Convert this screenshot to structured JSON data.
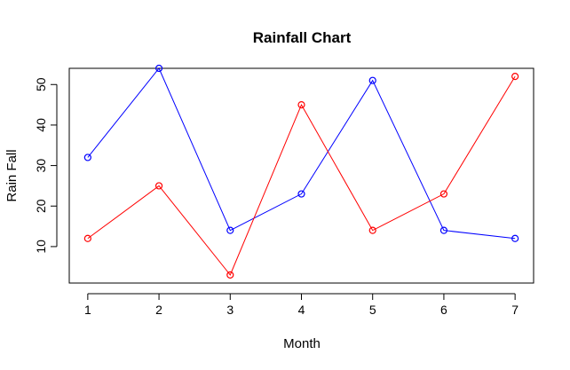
{
  "chart_data": {
    "type": "line",
    "title": "Rainfall Chart",
    "xlabel": "Month",
    "ylabel": "Rain Fall",
    "x": [
      1,
      2,
      3,
      4,
      5,
      6,
      7
    ],
    "xlim": [
      0.74,
      7.26
    ],
    "ylim": [
      1.0,
      54.0
    ],
    "xticks": [
      1,
      2,
      3,
      4,
      5,
      6,
      7
    ],
    "yticks": [
      10,
      20,
      30,
      40,
      50
    ],
    "grid": false,
    "series": [
      {
        "values": [
          32,
          54,
          14,
          23,
          51,
          14,
          12
        ],
        "color": "#0000ff",
        "marker": "open-circle"
      },
      {
        "values": [
          12,
          25,
          3,
          45,
          14,
          23,
          52
        ],
        "color": "#ff0000",
        "marker": "open-circle"
      }
    ]
  }
}
